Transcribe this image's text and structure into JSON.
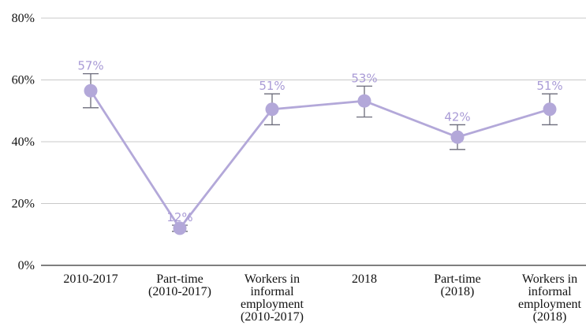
{
  "chart_data": {
    "type": "line",
    "title": "",
    "xlabel": "",
    "ylabel": "",
    "ylim": [
      0,
      80
    ],
    "y_ticks": [
      0,
      20,
      40,
      60,
      80
    ],
    "y_tick_labels": [
      "0%",
      "20%",
      "40%",
      "60%",
      "80%"
    ],
    "grid": true,
    "legend": "none",
    "categories": [
      [
        "2010-2017"
      ],
      [
        "Part-time",
        "(2010-2017)"
      ],
      [
        "Workers in",
        "informal",
        "employment",
        "(2010-2017)"
      ],
      [
        "2018"
      ],
      [
        "Part-time",
        "(2018)"
      ],
      [
        "Workers in",
        "informal",
        "employment",
        "(2018)"
      ]
    ],
    "series": [
      {
        "values": [
          56.5,
          12,
          50.5,
          53.2,
          41.5,
          50.5
        ],
        "error_low": [
          51,
          11,
          45.5,
          48,
          37.5,
          45.5
        ],
        "error_high": [
          62,
          13,
          55.5,
          58,
          45.5,
          55.5
        ],
        "data_labels": [
          "57%",
          "12%",
          "51%",
          "53%",
          "42%",
          "51%"
        ]
      }
    ],
    "colors": {
      "line": "#b3a8d9",
      "marker": "#b3a8d9",
      "error_bar": "#6b6b7a",
      "data_label": "#a99bd6",
      "grid": "#c8c8c8",
      "axis": "#333333"
    }
  }
}
